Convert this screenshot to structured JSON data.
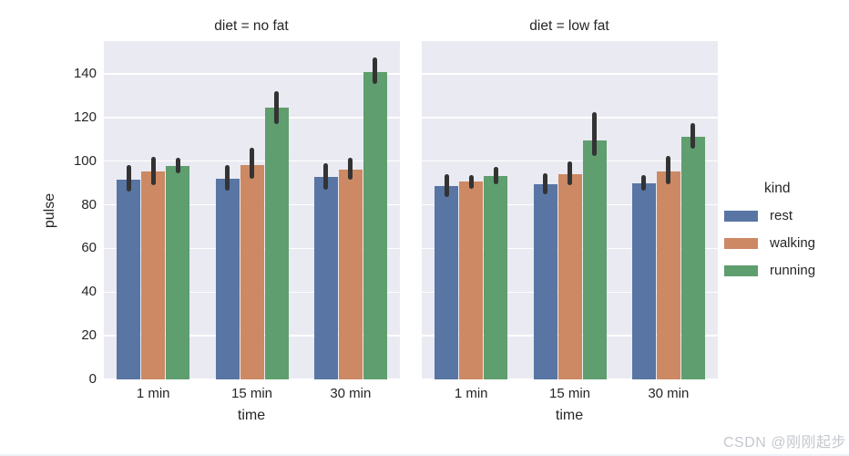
{
  "figure": {
    "ylabel": "pulse",
    "xlabel": "time",
    "watermark": "CSDN @刚刚起步"
  },
  "chart_data": {
    "type": "bar",
    "faceted_by": "diet",
    "xlabel": "time",
    "ylabel": "pulse",
    "ylim": [
      0,
      155
    ],
    "yticks": [
      0,
      20,
      40,
      60,
      80,
      100,
      120,
      140
    ],
    "grid": true,
    "plot_background": "#eaeaf2",
    "gridline_color": "#ffffff",
    "errorbar_color": "#333333",
    "categories": [
      "1 min",
      "15 min",
      "30 min"
    ],
    "facets": [
      {
        "title": "diet = no fat",
        "categories": [
          "1 min",
          "15 min",
          "30 min"
        ],
        "series": [
          {
            "name": "rest",
            "color": "#5875a4",
            "values": [
              91.7,
              92.1,
              92.8
            ],
            "ci": [
              [
                86.0,
                98.0
              ],
              [
                86.5,
                98.0
              ],
              [
                87.0,
                99.0
              ]
            ]
          },
          {
            "name": "walking",
            "color": "#cc8963",
            "values": [
              95.1,
              98.1,
              96.1
            ],
            "ci": [
              [
                89.0,
                102.0
              ],
              [
                92.0,
                106.0
              ],
              [
                91.5,
                101.5
              ]
            ]
          },
          {
            "name": "running",
            "color": "#5f9e6e",
            "values": [
              97.6,
              124.4,
              140.6
            ],
            "ci": [
              [
                94.5,
                101.5
              ],
              [
                117.0,
                132.0
              ],
              [
                135.5,
                147.5
              ]
            ]
          }
        ]
      },
      {
        "title": "diet = low fat",
        "categories": [
          "1 min",
          "15 min",
          "30 min"
        ],
        "series": [
          {
            "name": "rest",
            "color": "#5875a4",
            "values": [
              88.4,
              89.6,
              89.7
            ],
            "ci": [
              [
                83.5,
                94.0
              ],
              [
                85.0,
                94.5
              ],
              [
                86.5,
                93.5
              ]
            ]
          },
          {
            "name": "walking",
            "color": "#cc8963",
            "values": [
              90.5,
              93.9,
              95.1
            ],
            "ci": [
              [
                87.5,
                93.5
              ],
              [
                89.0,
                100.0
              ],
              [
                89.5,
                102.5
              ]
            ]
          },
          {
            "name": "running",
            "color": "#5f9e6e",
            "values": [
              93.3,
              109.5,
              111.1
            ],
            "ci": [
              [
                89.5,
                97.5
              ],
              [
                102.5,
                122.5
              ],
              [
                105.5,
                117.5
              ]
            ]
          }
        ]
      }
    ],
    "legend": {
      "title": "kind",
      "entries": [
        {
          "label": "rest",
          "color": "#5875a4"
        },
        {
          "label": "walking",
          "color": "#cc8963"
        },
        {
          "label": "running",
          "color": "#5f9e6e"
        }
      ],
      "position": "right"
    }
  }
}
